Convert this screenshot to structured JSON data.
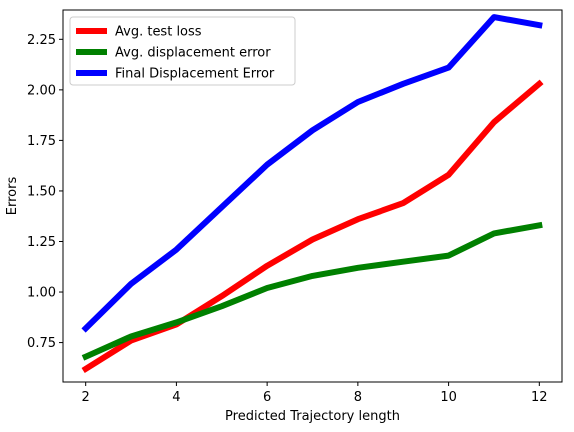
{
  "chart_data": {
    "type": "line",
    "title": "",
    "xlabel": "Predicted Trajectory length",
    "ylabel": "Errors",
    "x": [
      2,
      3,
      4,
      5,
      6,
      7,
      8,
      9,
      10,
      11,
      12
    ],
    "xlim": [
      1.5,
      12.5
    ],
    "ylim": [
      0.555,
      2.395
    ],
    "xticks": [
      2,
      4,
      6,
      8,
      10,
      12
    ],
    "yticks": [
      0.75,
      1.0,
      1.25,
      1.5,
      1.75,
      2.0,
      2.25
    ],
    "ytick_labels": [
      "0.75",
      "1.00",
      "1.25",
      "1.50",
      "1.75",
      "2.00",
      "2.25"
    ],
    "grid": false,
    "legend_position": "upper-left",
    "series": [
      {
        "name": "Avg. test loss",
        "color": "#ff0000",
        "values": [
          0.62,
          0.76,
          0.84,
          0.98,
          1.13,
          1.26,
          1.36,
          1.44,
          1.58,
          1.84,
          2.03
        ]
      },
      {
        "name": "Avg. displacement error",
        "color": "#008000",
        "values": [
          0.68,
          0.78,
          0.85,
          0.93,
          1.02,
          1.08,
          1.12,
          1.15,
          1.18,
          1.29,
          1.33
        ]
      },
      {
        "name": "Final Displacement Error",
        "color": "#0000ff",
        "values": [
          0.82,
          1.04,
          1.21,
          1.42,
          1.63,
          1.8,
          1.94,
          2.03,
          2.11,
          2.36,
          2.32
        ]
      }
    ]
  }
}
